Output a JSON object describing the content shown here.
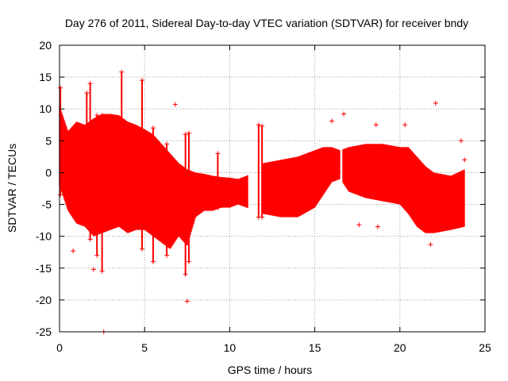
{
  "chart_data": {
    "type": "scatter",
    "title": "Day 276 of 2011, Sidereal Day-to-day VTEC variation (SDTVAR) for receiver bndy",
    "xlabel": "GPS time / hours",
    "ylabel": "SDTVAR / TECUs",
    "xlim": [
      0,
      25
    ],
    "ylim": [
      -25,
      20
    ],
    "x_ticks": [
      0,
      5,
      10,
      15,
      20,
      25
    ],
    "y_ticks": [
      -25,
      -20,
      -15,
      -10,
      -5,
      0,
      5,
      10,
      15,
      20
    ],
    "x_tick_labels": [
      "0",
      "5",
      "10",
      "15",
      "20",
      "25"
    ],
    "y_tick_labels": [
      "-25",
      "-20",
      "-15",
      "-10",
      "-5",
      "0",
      "5",
      "10",
      "15",
      "20"
    ],
    "grid": true,
    "marker": "+",
    "color": "#ff0000",
    "series": [
      {
        "name": "SDTVAR",
        "envelope": [
          {
            "x": 0.0,
            "lower": -2.0,
            "upper": 10.5
          },
          {
            "x": 0.5,
            "lower": -6.0,
            "upper": 6.5
          },
          {
            "x": 1.0,
            "lower": -8.0,
            "upper": 8.0
          },
          {
            "x": 1.5,
            "lower": -8.5,
            "upper": 7.5
          },
          {
            "x": 2.0,
            "lower": -10.0,
            "upper": 8.5
          },
          {
            "x": 2.5,
            "lower": -9.5,
            "upper": 9.2
          },
          {
            "x": 3.0,
            "lower": -9.0,
            "upper": 9.2
          },
          {
            "x": 3.5,
            "lower": -8.5,
            "upper": 9.0
          },
          {
            "x": 4.0,
            "lower": -9.5,
            "upper": 8.0
          },
          {
            "x": 4.5,
            "lower": -9.0,
            "upper": 7.5
          },
          {
            "x": 5.0,
            "lower": -9.0,
            "upper": 6.8
          },
          {
            "x": 5.5,
            "lower": -10.0,
            "upper": 6.0
          },
          {
            "x": 6.0,
            "lower": -11.0,
            "upper": 4.5
          },
          {
            "x": 6.5,
            "lower": -12.0,
            "upper": 3.0
          },
          {
            "x": 7.0,
            "lower": -10.0,
            "upper": 1.5
          },
          {
            "x": 7.5,
            "lower": -11.5,
            "upper": 0.5
          },
          {
            "x": 8.0,
            "lower": -7.0,
            "upper": 0.0
          },
          {
            "x": 8.5,
            "lower": -6.0,
            "upper": -0.2
          },
          {
            "x": 9.0,
            "lower": -6.0,
            "upper": -0.5
          },
          {
            "x": 9.5,
            "lower": -5.5,
            "upper": -0.7
          },
          {
            "x": 10.0,
            "lower": -5.5,
            "upper": -0.8
          },
          {
            "x": 10.5,
            "lower": -5.0,
            "upper": -1.0
          },
          {
            "x": 11.0,
            "lower": -5.5,
            "upper": -0.5
          },
          {
            "x": 12.0,
            "lower": -6.5,
            "upper": 1.5
          },
          {
            "x": 13.0,
            "lower": -7.0,
            "upper": 2.0
          },
          {
            "x": 14.0,
            "lower": -7.0,
            "upper": 2.5
          },
          {
            "x": 15.0,
            "lower": -5.5,
            "upper": 3.5
          },
          {
            "x": 15.5,
            "lower": -3.5,
            "upper": 4.0
          },
          {
            "x": 16.0,
            "lower": -1.5,
            "upper": 4.0
          },
          {
            "x": 16.5,
            "lower": -1.0,
            "upper": 3.5
          },
          {
            "x": 17.0,
            "lower": -3.0,
            "upper": 4.0
          },
          {
            "x": 18.0,
            "lower": -4.0,
            "upper": 4.5
          },
          {
            "x": 19.0,
            "lower": -4.5,
            "upper": 4.5
          },
          {
            "x": 20.0,
            "lower": -5.0,
            "upper": 4.0
          },
          {
            "x": 20.5,
            "lower": -6.5,
            "upper": 4.0
          },
          {
            "x": 21.0,
            "lower": -8.5,
            "upper": 2.5
          },
          {
            "x": 21.5,
            "lower": -9.5,
            "upper": 1.0
          },
          {
            "x": 22.0,
            "lower": -9.5,
            "upper": 0.0
          },
          {
            "x": 23.0,
            "lower": -9.0,
            "upper": -0.5
          },
          {
            "x": 23.8,
            "lower": -8.5,
            "upper": 0.5
          }
        ],
        "gaps": [
          [
            11.1,
            11.85
          ],
          [
            16.5,
            16.62
          ]
        ],
        "spikes": [
          {
            "x": 0.05,
            "lower": -3.5,
            "upper": 13.3
          },
          {
            "x": 1.6,
            "lower": -8.0,
            "upper": 12.5
          },
          {
            "x": 1.8,
            "lower": -10.5,
            "upper": 14.0
          },
          {
            "x": 2.2,
            "lower": -13.0,
            "upper": 9.0
          },
          {
            "x": 2.5,
            "lower": -15.5,
            "upper": 9.0
          },
          {
            "x": 3.65,
            "lower": -8.5,
            "upper": 15.8
          },
          {
            "x": 4.85,
            "lower": -12.0,
            "upper": 14.5
          },
          {
            "x": 5.5,
            "lower": -14.0,
            "upper": 7.0
          },
          {
            "x": 6.3,
            "lower": -13.0,
            "upper": 4.5
          },
          {
            "x": 7.4,
            "lower": -16.0,
            "upper": 6.0
          },
          {
            "x": 7.6,
            "lower": -14.0,
            "upper": 6.2
          },
          {
            "x": 9.3,
            "lower": -5.5,
            "upper": 3.0
          },
          {
            "x": 11.7,
            "lower": -7.0,
            "upper": 7.5
          },
          {
            "x": 11.9,
            "lower": -7.0,
            "upper": 7.3
          }
        ],
        "outliers": [
          {
            "x": 2.6,
            "y": -25.0
          },
          {
            "x": 7.5,
            "y": -20.2
          },
          {
            "x": 0.8,
            "y": -12.3
          },
          {
            "x": 2.0,
            "y": -15.2
          },
          {
            "x": 6.8,
            "y": 10.7
          },
          {
            "x": 16.0,
            "y": 8.1
          },
          {
            "x": 16.7,
            "y": 9.2
          },
          {
            "x": 17.6,
            "y": -8.2
          },
          {
            "x": 18.6,
            "y": 7.5
          },
          {
            "x": 18.7,
            "y": -8.5
          },
          {
            "x": 20.3,
            "y": 7.5
          },
          {
            "x": 21.8,
            "y": -11.3
          },
          {
            "x": 22.1,
            "y": 10.9
          },
          {
            "x": 23.6,
            "y": 5.0
          },
          {
            "x": 23.8,
            "y": 2.0
          }
        ]
      }
    ]
  }
}
